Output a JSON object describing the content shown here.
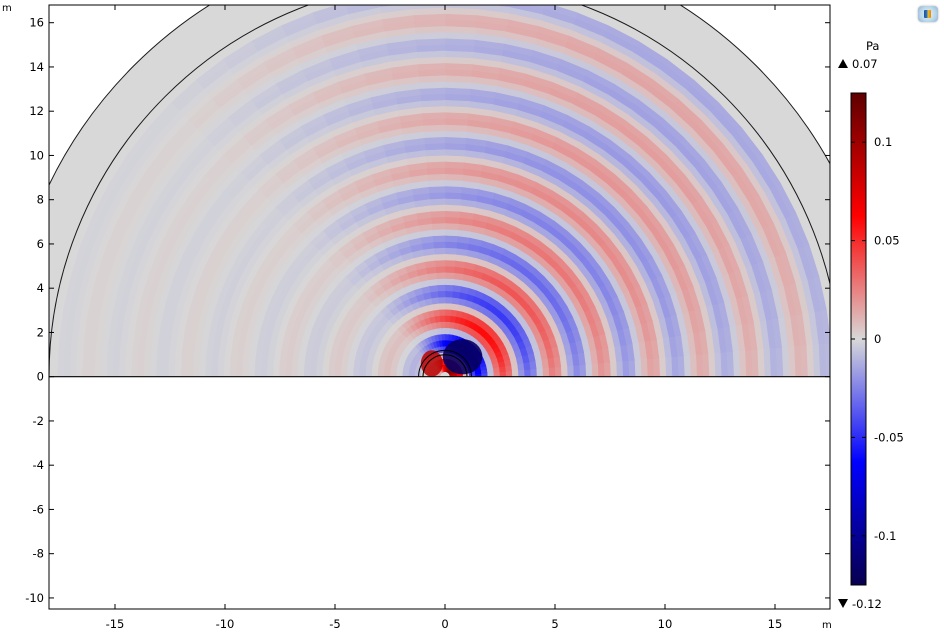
{
  "chart_data": {
    "type": "heatmap",
    "x_unit": "m",
    "y_unit": "m",
    "xlim": [
      -18,
      17.5
    ],
    "ylim": [
      -10.5,
      16.8
    ],
    "x_ticks": [
      -15,
      -10,
      -5,
      0,
      5,
      10,
      15
    ],
    "y_ticks": [
      -10,
      -8,
      -6,
      -4,
      -2,
      0,
      2,
      4,
      6,
      8,
      10,
      12,
      14,
      16
    ],
    "field": "acoustic pressure (dipole-like radiation above ground plane)",
    "domain_outer_radius": 20,
    "domain_inner_radius": 18,
    "source_circle_radii": [
      1.2,
      1.0
    ],
    "colorbar": {
      "unit": "Pa",
      "max_label": "0.07",
      "min_label": "-0.12",
      "range": [
        -0.125,
        0.125
      ],
      "ticks": [
        0.1,
        0.05,
        0,
        -0.05,
        -0.1
      ],
      "colormap": [
        "#08004e",
        "#0000ff",
        "#d8d8d8",
        "#ff0000",
        "#5e0000"
      ]
    }
  },
  "icons": {
    "max_marker": "triangle-up",
    "min_marker": "triangle-down",
    "corner": "graphics-window-icon"
  }
}
